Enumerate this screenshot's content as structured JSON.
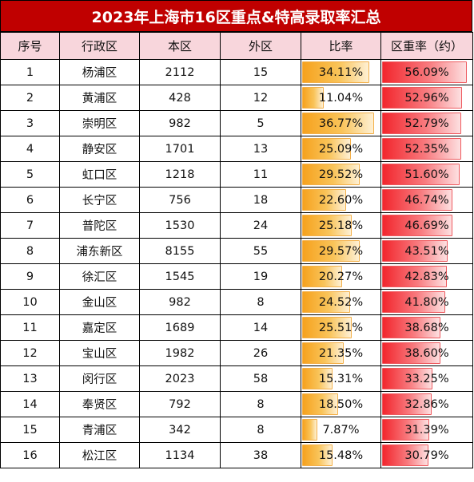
{
  "title": "2023年上海市16区重点&特高录取率汇总",
  "headers": [
    "序号",
    "行政区",
    "本区",
    "外区",
    "比率",
    "区重率（约）"
  ],
  "rows": [
    {
      "no": "1",
      "district": "杨浦区",
      "local": "2112",
      "outside": "15",
      "ratio": "34.11%",
      "ratio_value": 34.11,
      "key_rate": "56.09%",
      "key_rate_value": 56.09
    },
    {
      "no": "2",
      "district": "黄浦区",
      "local": "428",
      "outside": "12",
      "ratio": "11.04%",
      "ratio_value": 11.04,
      "key_rate": "52.96%",
      "key_rate_value": 52.96
    },
    {
      "no": "3",
      "district": "崇明区",
      "local": "982",
      "outside": "5",
      "ratio": "36.77%",
      "ratio_value": 36.77,
      "key_rate": "52.79%",
      "key_rate_value": 52.79
    },
    {
      "no": "4",
      "district": "静安区",
      "local": "1701",
      "outside": "13",
      "ratio": "25.09%",
      "ratio_value": 25.09,
      "key_rate": "52.35%",
      "key_rate_value": 52.35
    },
    {
      "no": "5",
      "district": "虹口区",
      "local": "1218",
      "outside": "11",
      "ratio": "29.52%",
      "ratio_value": 29.52,
      "key_rate": "51.60%",
      "key_rate_value": 51.6
    },
    {
      "no": "6",
      "district": "长宁区",
      "local": "756",
      "outside": "18",
      "ratio": "22.60%",
      "ratio_value": 22.6,
      "key_rate": "46.74%",
      "key_rate_value": 46.74
    },
    {
      "no": "7",
      "district": "普陀区",
      "local": "1530",
      "outside": "24",
      "ratio": "25.18%",
      "ratio_value": 25.18,
      "key_rate": "46.69%",
      "key_rate_value": 46.69
    },
    {
      "no": "8",
      "district": "浦东新区",
      "local": "8155",
      "outside": "55",
      "ratio": "29.57%",
      "ratio_value": 29.57,
      "key_rate": "43.51%",
      "key_rate_value": 43.51
    },
    {
      "no": "9",
      "district": "徐汇区",
      "local": "1545",
      "outside": "19",
      "ratio": "20.27%",
      "ratio_value": 20.27,
      "key_rate": "42.83%",
      "key_rate_value": 42.83
    },
    {
      "no": "10",
      "district": "金山区",
      "local": "982",
      "outside": "8",
      "ratio": "24.52%",
      "ratio_value": 24.52,
      "key_rate": "41.80%",
      "key_rate_value": 41.8
    },
    {
      "no": "11",
      "district": "嘉定区",
      "local": "1689",
      "outside": "14",
      "ratio": "25.51%",
      "ratio_value": 25.51,
      "key_rate": "38.68%",
      "key_rate_value": 38.68
    },
    {
      "no": "12",
      "district": "宝山区",
      "local": "1982",
      "outside": "26",
      "ratio": "21.35%",
      "ratio_value": 21.35,
      "key_rate": "38.60%",
      "key_rate_value": 38.6
    },
    {
      "no": "13",
      "district": "闵行区",
      "local": "2023",
      "outside": "58",
      "ratio": "15.31%",
      "ratio_value": 15.31,
      "key_rate": "33.25%",
      "key_rate_value": 33.25
    },
    {
      "no": "14",
      "district": "奉贤区",
      "local": "792",
      "outside": "8",
      "ratio": "18.50%",
      "ratio_value": 18.5,
      "key_rate": "32.86%",
      "key_rate_value": 32.86
    },
    {
      "no": "15",
      "district": "青浦区",
      "local": "342",
      "outside": "8",
      "ratio": "7.87%",
      "ratio_value": 7.87,
      "key_rate": "31.39%",
      "key_rate_value": 31.39
    },
    {
      "no": "16",
      "district": "松江区",
      "local": "1134",
      "outside": "38",
      "ratio": "15.48%",
      "ratio_value": 15.48,
      "key_rate": "30.79%",
      "key_rate_value": 30.79
    }
  ],
  "colors": {
    "title_bg": "#c00000",
    "header_bg": "#f8d6dc",
    "ratio_bar": "#f6a21e",
    "key_rate_bar": "#f2262d"
  }
}
